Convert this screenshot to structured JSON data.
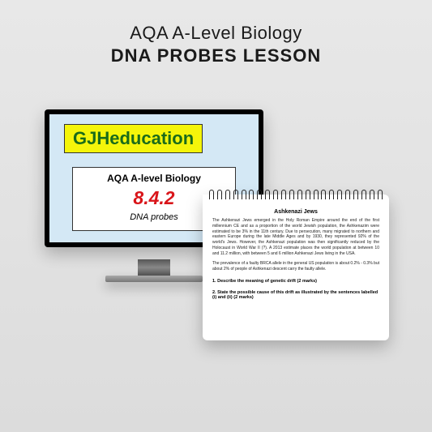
{
  "header": {
    "line1": "AQA A-Level Biology",
    "line2": "DNA PROBES LESSON"
  },
  "monitor": {
    "brand": "GJHeducation",
    "slide": {
      "title": "AQA A-level Biology",
      "number": "8.4.2",
      "subtitle": "DNA probes"
    },
    "colors": {
      "screen_bg": "#d4e8f5",
      "brand_bg": "#f5f50a",
      "brand_text": "#1a6b1a",
      "number_color": "#d9151a"
    }
  },
  "notebook": {
    "title": "Ashkenazi Jews",
    "para1": "The Ashkenazi Jews emerged in the Holy Roman Empire around the end of the first millennium CE and as a proportion of the world Jewish population, the Ashkenazim were estimated to be 3% in the 11th century. Due to persecution, many migrated to northern and eastern Europe during the late Middle Ages and by 1930, they represented 92% of the world's Jews. However, the Ashkenazi population was then significantly reduced by the Holocaust in World War II (?). A 2013 estimate places the world population at between 10 and 11.2 million, with between 5 and 6 million Ashkenazi Jews living in the USA.",
    "para2": "The prevalence of a faulty BRCA allele in the general US population is about 0.2% - 0.3% but about 2% of people of Ashkenazi descent carry the faulty allele.",
    "q1": "1. Describe the meaning of genetic drift (2 marks)",
    "q2": "2. State the possible cause of this drift as illustrated by the sentences labelled (i) and (ii) (2 marks)"
  },
  "background_color": "#e2e2e2"
}
